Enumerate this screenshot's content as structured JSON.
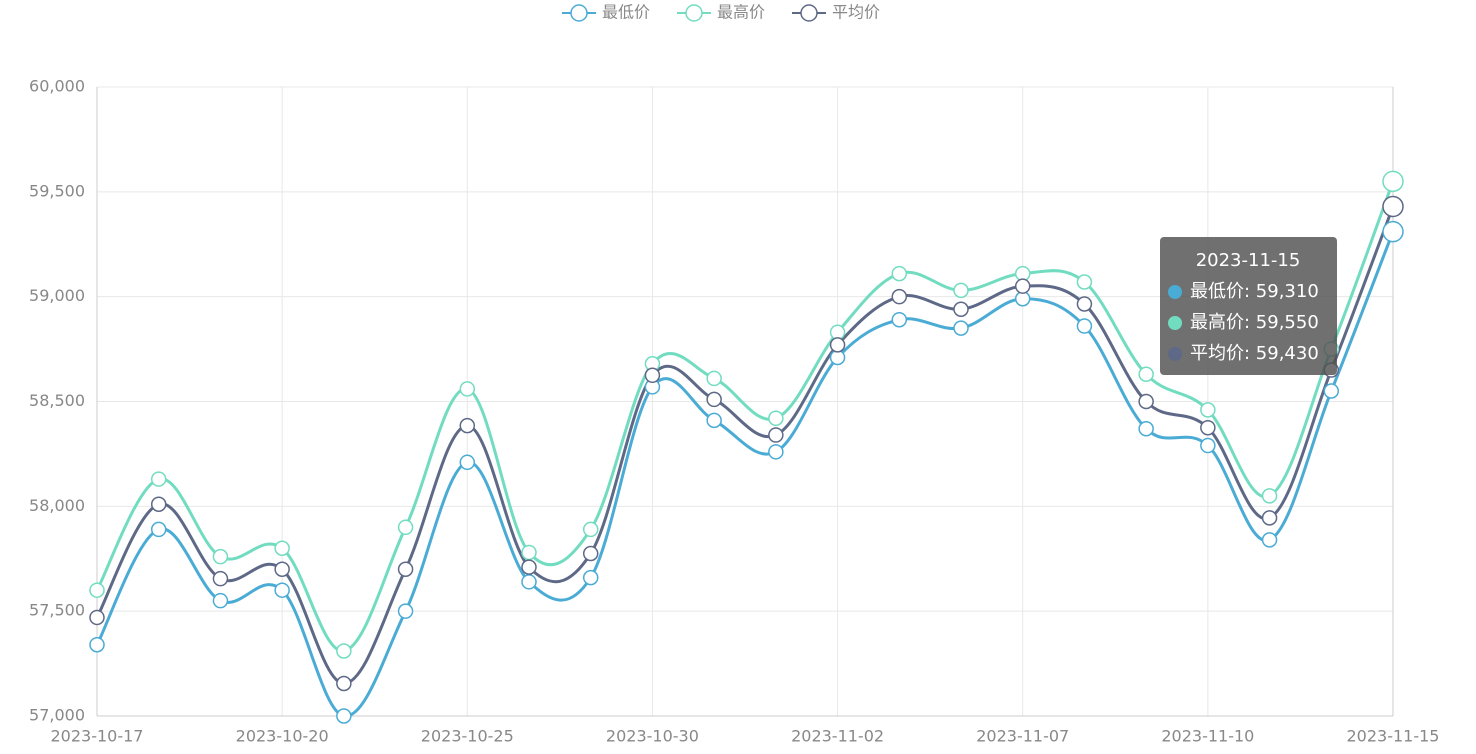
{
  "chart_data": {
    "type": "line",
    "categories": [
      "2023-10-17",
      null,
      null,
      "2023-10-20",
      null,
      null,
      "2023-10-25",
      null,
      null,
      "2023-10-30",
      null,
      null,
      "2023-11-02",
      null,
      null,
      "2023-11-07",
      null,
      null,
      "2023-11-10",
      null,
      null,
      "2023-11-15"
    ],
    "series": [
      {
        "name": "最低价",
        "color": "#4aabd5",
        "values": [
          57340,
          57890,
          57550,
          57600,
          57000,
          57500,
          58210,
          57640,
          57660,
          58570,
          58410,
          58260,
          58710,
          58890,
          58850,
          58990,
          58860,
          58370,
          58290,
          57840,
          58550,
          59310
        ]
      },
      {
        "name": "最高价",
        "color": "#72dcc0",
        "values": [
          57600,
          58130,
          57760,
          57800,
          57310,
          57900,
          58560,
          57780,
          57890,
          58680,
          58610,
          58420,
          58830,
          59110,
          59030,
          59110,
          59070,
          58630,
          58460,
          58050,
          58750,
          59550
        ]
      },
      {
        "name": "平均价",
        "color": "#5e6987",
        "values": [
          57470,
          58010,
          57655,
          57700,
          57155,
          57700,
          58385,
          57710,
          57775,
          58625,
          58510,
          58340,
          58770,
          59000,
          58940,
          59050,
          58965,
          58500,
          58375,
          57945,
          58650,
          59430
        ]
      }
    ],
    "ylim": [
      57000,
      60000
    ],
    "yticks": [
      {
        "value": 57000,
        "label": "57,000"
      },
      {
        "value": 57500,
        "label": "57,500"
      },
      {
        "value": 58000,
        "label": "58,000"
      },
      {
        "value": 58500,
        "label": "58,500"
      },
      {
        "value": 59000,
        "label": "59,000"
      },
      {
        "value": 59500,
        "label": "59,500"
      },
      {
        "value": 60000,
        "label": "60,000"
      }
    ],
    "grid": true,
    "legend": "top",
    "tooltip": {
      "rows": [
        "最低价: 59,310",
        "最高价: 59,550",
        "平均价: 59,430"
      ]
    }
  }
}
